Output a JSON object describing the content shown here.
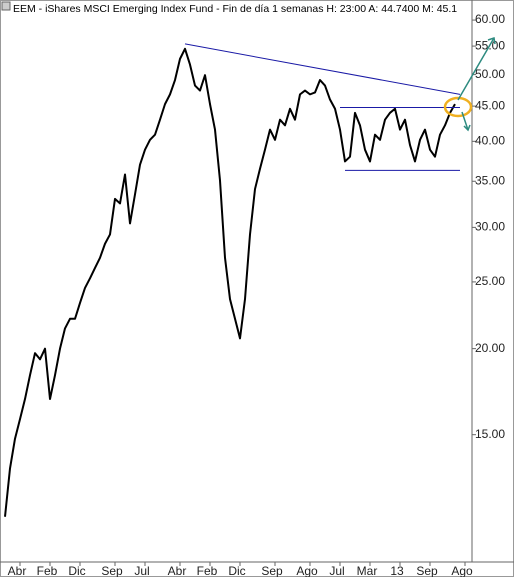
{
  "chart_data": {
    "type": "line",
    "title": "EEM - iShares MSCI Emerging Index Fund - Fin de día 1 semanas  H: 23:00  A: 44.7400  M: 45.1",
    "categories": [
      null,
      null,
      null,
      "Abr",
      null,
      null,
      null,
      null,
      null,
      "Feb",
      null,
      null,
      null,
      null,
      null,
      "Dic",
      null,
      null,
      null,
      null,
      null,
      null,
      "Sep",
      null,
      null,
      null,
      null,
      null,
      "Jul",
      null,
      null,
      null,
      null,
      null,
      null,
      "Abr",
      null,
      null,
      null,
      null,
      null,
      "Feb",
      null,
      null,
      null,
      null,
      null,
      "Dic",
      null,
      null,
      null,
      null,
      null,
      null,
      "Sep",
      null,
      null,
      null,
      null,
      null,
      null,
      "Ago",
      null,
      null,
      null,
      null,
      null,
      "Jul",
      null,
      null,
      null,
      null,
      null,
      "Mar",
      null,
      null,
      null,
      null,
      null,
      "13",
      null,
      null,
      null,
      null,
      null,
      "Sep",
      null,
      null,
      null,
      null,
      null,
      null,
      "Ago"
    ],
    "series": [
      {
        "name": "EEM",
        "color": "#000000",
        "values": [
          11.4,
          13.4,
          14.8,
          15.8,
          16.9,
          18.3,
          19.7,
          19.3,
          20.0,
          16.9,
          18.3,
          20.0,
          21.4,
          22.1,
          22.1,
          23.3,
          24.5,
          25.3,
          26.2,
          27.1,
          28.4,
          29.3,
          33.0,
          32.5,
          35.8,
          30.4,
          33.5,
          37.0,
          38.9,
          40.2,
          40.9,
          43.0,
          45.3,
          46.8,
          49.1,
          52.7,
          54.5,
          51.7,
          48.2,
          47.4,
          49.9,
          45.3,
          41.6,
          35.1,
          27.1,
          23.6,
          22.1,
          20.7,
          23.6,
          29.3,
          34.1,
          36.5,
          38.9,
          41.6,
          40.2,
          43.0,
          42.2,
          44.6,
          43.0,
          46.8,
          47.4,
          46.8,
          47.1,
          49.1,
          48.2,
          46.0,
          44.6,
          41.6,
          37.4,
          38.0,
          44.0,
          42.2,
          38.9,
          37.4,
          40.9,
          40.2,
          43.0,
          44.0,
          44.6,
          41.6,
          43.0,
          39.5,
          37.4,
          40.2,
          41.6,
          38.9,
          38.0,
          40.9,
          42.2,
          44.0,
          45.3,
          null,
          null
        ]
      }
    ],
    "trend_lines": [
      {
        "color": "#1a1aa6",
        "x": [
          36,
          91
        ],
        "y": [
          55.4,
          46.8
        ]
      },
      {
        "color": "#1a1aa6",
        "x": [
          67,
          91
        ],
        "y": [
          44.8,
          44.8
        ]
      },
      {
        "color": "#1a1aa6",
        "x": [
          68,
          91
        ],
        "y": [
          36.3,
          36.3
        ]
      }
    ],
    "log_scale": true,
    "ylim": [
      9.8,
      63.1
    ],
    "yticks": [
      {
        "value": 15,
        "label": "15.00"
      },
      {
        "value": 20,
        "label": "20.00"
      },
      {
        "value": 25,
        "label": "25.00"
      },
      {
        "value": 30,
        "label": "30.00"
      },
      {
        "value": 35,
        "label": "35.00"
      },
      {
        "value": 40,
        "label": "40.00"
      },
      {
        "value": 45,
        "label": "45.00"
      },
      {
        "value": 50,
        "label": "50.00"
      },
      {
        "value": 55,
        "label": "55.00"
      },
      {
        "value": 60,
        "label": "60.00"
      }
    ]
  }
}
